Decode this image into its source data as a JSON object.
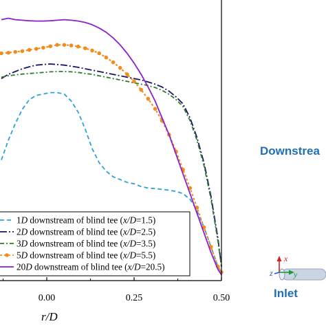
{
  "chart_data": {
    "type": "line",
    "xlabel": "r/D",
    "x_ticks": [
      "0.00",
      "0.25",
      "0.50"
    ],
    "xlim": [
      -0.13,
      0.5
    ],
    "ylim": [
      0,
      1
    ],
    "series": [
      {
        "name": "1D downstream of blind tee (x/D=1.5)",
        "name_parts": [
          [
            "1",
            ""
          ],
          [
            "D",
            "i"
          ],
          [
            " downstream of blind tee (",
            ""
          ],
          [
            "x/D",
            "i"
          ],
          [
            "=1.5)",
            ""
          ]
        ],
        "color": "#29a3d6",
        "dash": "6,4",
        "marker": "none",
        "x": [
          -0.13,
          -0.11,
          -0.09,
          -0.07,
          -0.05,
          -0.03,
          -0.01,
          0.01,
          0.03,
          0.05,
          0.07,
          0.09,
          0.11,
          0.13,
          0.15,
          0.17,
          0.19,
          0.21,
          0.23,
          0.25,
          0.27,
          0.29,
          0.31,
          0.33,
          0.35,
          0.37,
          0.39,
          0.41,
          0.43,
          0.45,
          0.47,
          0.49,
          0.5
        ],
        "y": [
          0.43,
          0.5,
          0.56,
          0.61,
          0.645,
          0.66,
          0.665,
          0.67,
          0.67,
          0.665,
          0.64,
          0.6,
          0.54,
          0.47,
          0.42,
          0.39,
          0.37,
          0.36,
          0.35,
          0.345,
          0.335,
          0.33,
          0.328,
          0.325,
          0.322,
          0.318,
          0.31,
          0.29,
          0.25,
          0.19,
          0.12,
          0.05,
          0.03
        ]
      },
      {
        "name": "2D downstream of blind tee (x/D=2.5)",
        "name_parts": [
          [
            "2",
            ""
          ],
          [
            "D",
            "i"
          ],
          [
            " downstream of blind tee (",
            ""
          ],
          [
            "x/D",
            "i"
          ],
          [
            "=2.5)",
            ""
          ]
        ],
        "color": "#1a1466",
        "dash": "10,3,2,3",
        "marker": "none",
        "x": [
          -0.13,
          -0.11,
          -0.09,
          -0.07,
          -0.05,
          -0.03,
          -0.01,
          0.01,
          0.03,
          0.05,
          0.07,
          0.09,
          0.11,
          0.13,
          0.15,
          0.17,
          0.19,
          0.21,
          0.23,
          0.25,
          0.27,
          0.29,
          0.31,
          0.33,
          0.35,
          0.37,
          0.39,
          0.41,
          0.43,
          0.45,
          0.47,
          0.49,
          0.5
        ],
        "y": [
          0.72,
          0.735,
          0.745,
          0.755,
          0.762,
          0.768,
          0.77,
          0.772,
          0.77,
          0.768,
          0.764,
          0.76,
          0.755,
          0.75,
          0.745,
          0.74,
          0.735,
          0.73,
          0.725,
          0.72,
          0.715,
          0.708,
          0.7,
          0.69,
          0.675,
          0.655,
          0.63,
          0.58,
          0.51,
          0.42,
          0.3,
          0.15,
          0.05
        ]
      },
      {
        "name": "3D downstream of blind tee (x/D=3.5)",
        "name_parts": [
          [
            "3",
            ""
          ],
          [
            "D",
            "i"
          ],
          [
            " downstream of blind tee (",
            ""
          ],
          [
            "x/D",
            "i"
          ],
          [
            "=3.5)",
            ""
          ]
        ],
        "color": "#2d7a2d",
        "dash": "6,3,2,3",
        "marker": "none",
        "x": [
          -0.13,
          -0.11,
          -0.09,
          -0.07,
          -0.05,
          -0.03,
          -0.01,
          0.01,
          0.03,
          0.05,
          0.07,
          0.09,
          0.11,
          0.13,
          0.15,
          0.17,
          0.19,
          0.21,
          0.23,
          0.25,
          0.27,
          0.29,
          0.31,
          0.33,
          0.35,
          0.37,
          0.39,
          0.41,
          0.43,
          0.45,
          0.47,
          0.49,
          0.5
        ],
        "y": [
          0.725,
          0.73,
          0.733,
          0.736,
          0.738,
          0.74,
          0.742,
          0.744,
          0.745,
          0.745,
          0.744,
          0.742,
          0.738,
          0.735,
          0.73,
          0.725,
          0.72,
          0.715,
          0.71,
          0.705,
          0.7,
          0.695,
          0.688,
          0.678,
          0.664,
          0.645,
          0.62,
          0.57,
          0.5,
          0.41,
          0.29,
          0.14,
          0.05
        ]
      },
      {
        "name": "5D downstream of blind tee (x/D=5.5)",
        "name_parts": [
          [
            "5",
            ""
          ],
          [
            "D",
            "i"
          ],
          [
            " downstream of blind tee (",
            ""
          ],
          [
            "x/D",
            "i"
          ],
          [
            "=5.5)",
            ""
          ]
        ],
        "color": "#f28c1e",
        "dash": "3,3",
        "marker": "circle",
        "x": [
          -0.13,
          -0.11,
          -0.09,
          -0.07,
          -0.05,
          -0.03,
          -0.01,
          0.01,
          0.03,
          0.05,
          0.07,
          0.09,
          0.11,
          0.13,
          0.15,
          0.17,
          0.19,
          0.21,
          0.23,
          0.25,
          0.27,
          0.29,
          0.31,
          0.33,
          0.35,
          0.37,
          0.39,
          0.41,
          0.43,
          0.45,
          0.47,
          0.49,
          0.5
        ],
        "y": [
          0.81,
          0.812,
          0.815,
          0.818,
          0.822,
          0.826,
          0.83,
          0.835,
          0.84,
          0.84,
          0.838,
          0.834,
          0.828,
          0.82,
          0.81,
          0.795,
          0.778,
          0.758,
          0.735,
          0.71,
          0.68,
          0.648,
          0.612,
          0.57,
          0.52,
          0.46,
          0.395,
          0.33,
          0.26,
          0.19,
          0.12,
          0.05,
          0.03
        ]
      },
      {
        "name": "20D downstream of blind tee (x/D=20.5)",
        "name_parts": [
          [
            "20",
            ""
          ],
          [
            "D",
            "i"
          ],
          [
            " downstream of blind tee (",
            ""
          ],
          [
            "x/D",
            "i"
          ],
          [
            "=20.5)",
            ""
          ]
        ],
        "color": "#8c1fc9",
        "dash": "",
        "marker": "none",
        "x": [
          -0.13,
          -0.11,
          -0.09,
          -0.07,
          -0.05,
          -0.03,
          -0.01,
          0.01,
          0.03,
          0.05,
          0.07,
          0.09,
          0.11,
          0.13,
          0.15,
          0.17,
          0.19,
          0.21,
          0.23,
          0.25,
          0.27,
          0.29,
          0.31,
          0.33,
          0.35,
          0.37,
          0.39,
          0.41,
          0.43,
          0.45,
          0.47,
          0.49,
          0.5
        ],
        "y": [
          0.93,
          0.935,
          0.93,
          0.928,
          0.926,
          0.925,
          0.925,
          0.926,
          0.928,
          0.93,
          0.928,
          0.925,
          0.92,
          0.912,
          0.9,
          0.885,
          0.865,
          0.84,
          0.81,
          0.775,
          0.735,
          0.69,
          0.64,
          0.58,
          0.52,
          0.45,
          0.38,
          0.31,
          0.24,
          0.17,
          0.1,
          0.04,
          0.02
        ]
      }
    ],
    "legend_position": "bottom-left",
    "grid": false
  },
  "annotations": {
    "downstream_label": "Downstrea",
    "inlet_label": "Inlet",
    "triad": {
      "x": "x",
      "y": "y",
      "z": "z"
    }
  },
  "colors": {
    "annotation_blue": "#1f6fb5",
    "triad_red": "#d62020",
    "triad_green": "#1f9a3a",
    "triad_blue": "#1f4fd6",
    "pipe": "#c9d4e4"
  }
}
